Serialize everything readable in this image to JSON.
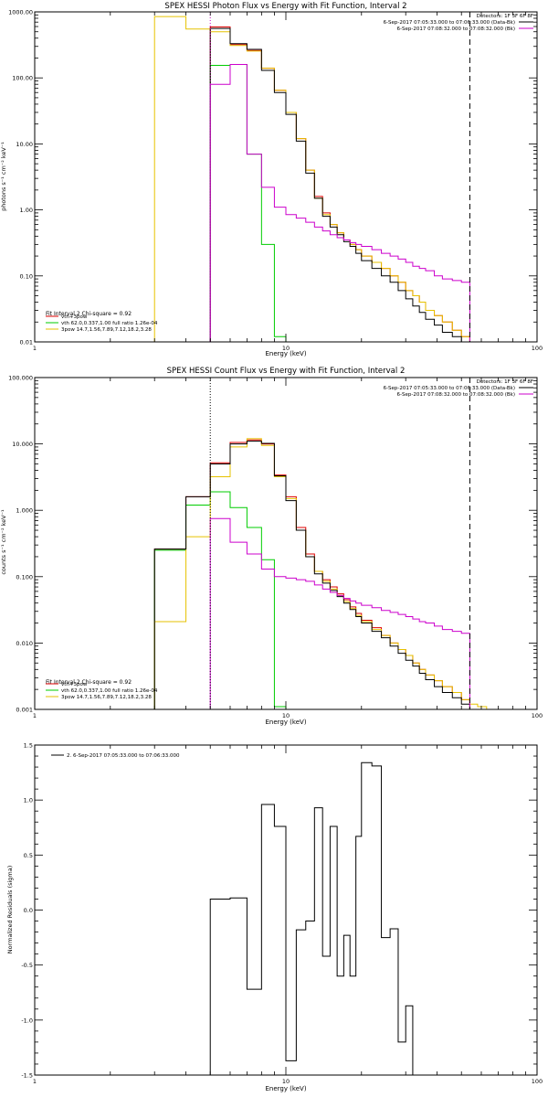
{
  "chart_data": [
    {
      "type": "line",
      "title": "SPEX HESSI Photon Flux vs Energy with Fit Function, Interval 2",
      "xlabel": "Energy (keV)",
      "ylabel": "photons s⁻¹ cm⁻² keV⁻¹",
      "xscale": "log",
      "yscale": "log",
      "xlim": [
        1,
        100
      ],
      "ylim": [
        0.01,
        1000
      ],
      "x_ticks": [
        "1",
        "10",
        "100"
      ],
      "y_ticks": [
        "0.01",
        "0.10",
        "1.00",
        "10.00",
        "100.00",
        "1000.00"
      ],
      "y_tick_values": [
        0.01,
        0.1,
        1,
        10,
        100,
        1000
      ],
      "bin_edges": [
        3,
        4,
        5,
        6,
        7,
        8,
        9,
        10,
        11,
        12,
        13,
        14,
        15,
        16,
        17,
        18,
        19,
        20,
        22,
        24,
        26,
        28,
        30,
        32,
        34,
        36,
        39,
        42,
        46,
        50,
        54,
        58,
        63,
        68
      ],
      "vlines": [
        {
          "x": 5.0,
          "style": "dotted",
          "color": "#cc00cc"
        },
        {
          "x": 54.0,
          "style": "dashed",
          "color": "#000000"
        }
      ],
      "info_lines": [
        "Detectors: 1F 3F 6F 8F",
        "6-Sep-2017 07:05:33.000 to 07:06:33.000 (Data-Bk)",
        "6-Sep-2017 07:08:32.000 to 07:08:32.000 (Bk)"
      ],
      "info_colors": [
        "#000000",
        "#cc00cc"
      ],
      "fit_label": "Fit Interval 2   Chi-square = 0.92",
      "series": [
        {
          "name": "vth+3pow",
          "color": "#dd0000",
          "start_index": 2,
          "values": [
            590,
            320,
            260,
            140,
            65,
            30,
            12,
            4.0,
            1.6,
            0.9,
            0.6,
            0.45,
            0.35,
            0.3,
            0.25,
            0.2,
            0.16,
            0.13,
            0.1,
            0.08,
            0.06,
            0.05,
            0.04,
            0.03,
            0.025,
            0.02,
            0.015,
            0.012
          ]
        },
        {
          "name": "vth 62.0,0.337,1.00  full ratio 1.26e-04",
          "color": "#00cc00",
          "start_index": 2,
          "values": [
            155,
            160,
            7.0,
            0.3,
            0.012
          ]
        },
        {
          "name": "3pow 14.7,1.56,7.89,7.12,18.2,3.28",
          "color": "#e6c200",
          "start_index": 0,
          "values": [
            850,
            550,
            500,
            310,
            255,
            140,
            65,
            30,
            12,
            4.0,
            1.5,
            0.85,
            0.6,
            0.45,
            0.35,
            0.3,
            0.25,
            0.2,
            0.16,
            0.13,
            0.1,
            0.08,
            0.06,
            0.05,
            0.04,
            0.03,
            0.025,
            0.02,
            0.015,
            0.012,
            0.01,
            0.009
          ]
        },
        {
          "name": "",
          "color": "#000000",
          "start_index": 2,
          "values": [
            560,
            330,
            270,
            130,
            60,
            28,
            11,
            3.6,
            1.5,
            0.8,
            0.55,
            0.42,
            0.33,
            0.28,
            0.22,
            0.17,
            0.13,
            0.1,
            0.08,
            0.06,
            0.045,
            0.035,
            0.028,
            0.022,
            0.018,
            0.014,
            0.012,
            0.01
          ]
        },
        {
          "name": "",
          "color": "#cc00cc",
          "start_index": 2,
          "values": [
            80,
            160,
            7.0,
            2.2,
            1.1,
            0.85,
            0.75,
            0.65,
            0.55,
            0.48,
            0.42,
            0.38,
            0.35,
            0.32,
            0.3,
            0.28,
            0.25,
            0.22,
            0.2,
            0.18,
            0.16,
            0.14,
            0.13,
            0.12,
            0.1,
            0.09,
            0.085,
            0.08
          ]
        }
      ]
    },
    {
      "type": "line",
      "title": "SPEX HESSI Count Flux vs Energy with Fit Function, Interval 2",
      "xlabel": "Energy (keV)",
      "ylabel": "counts s⁻¹ cm⁻² keV⁻¹",
      "xscale": "log",
      "yscale": "log",
      "xlim": [
        1,
        100
      ],
      "ylim": [
        0.001,
        100
      ],
      "x_ticks": [
        "1",
        "10",
        "100"
      ],
      "y_ticks": [
        "0.001",
        "0.010",
        "0.100",
        "1.000",
        "10.000",
        "100.000"
      ],
      "y_tick_values": [
        0.001,
        0.01,
        0.1,
        1,
        10,
        100
      ],
      "bin_edges": [
        3,
        4,
        5,
        6,
        7,
        8,
        9,
        10,
        11,
        12,
        13,
        14,
        15,
        16,
        17,
        18,
        19,
        20,
        22,
        24,
        26,
        28,
        30,
        32,
        34,
        36,
        39,
        42,
        46,
        50,
        54,
        58,
        63,
        68,
        73
      ],
      "vlines": [
        {
          "x": 5.0,
          "style": "dotted",
          "color": "#000000"
        },
        {
          "x": 54.0,
          "style": "dashed",
          "color": "#000000"
        }
      ],
      "info_lines": [
        "Detectors: 1F 3F 6F 8F",
        "6-Sep-2017 07:05:33.000 to 07:06:33.000 (Data-Bk)",
        "6-Sep-2017 07:08:32.000 to 07:08:32.000 (Bk)"
      ],
      "info_colors": [
        "#000000",
        "#cc00cc"
      ],
      "fit_label": "Fit Interval 2   Chi-square = 0.92",
      "series": [
        {
          "name": "vth+3pow",
          "color": "#dd0000",
          "start_index": 0,
          "values": [
            0.26,
            1.6,
            5.2,
            10.5,
            11.5,
            10.0,
            3.4,
            1.6,
            0.55,
            0.22,
            0.12,
            0.09,
            0.07,
            0.055,
            0.045,
            0.035,
            0.028,
            0.022,
            0.017,
            0.013,
            0.01,
            0.008,
            0.0065,
            0.005,
            0.004,
            0.0033,
            0.0027,
            0.0022,
            0.0018,
            0.0014
          ]
        },
        {
          "name": "vth 62.0,0.337,1.00  full ratio 1.26e-04",
          "color": "#00cc00",
          "start_index": 0,
          "values": [
            0.25,
            1.2,
            1.9,
            1.1,
            0.55,
            0.18,
            0.0011
          ]
        },
        {
          "name": "3pow 14.7,1.56,7.89,7.12,18.2,3.28",
          "color": "#e6c200",
          "start_index": 0,
          "values": [
            0.021,
            0.4,
            3.2,
            9.0,
            12.0,
            9.5,
            3.2,
            1.5,
            0.5,
            0.2,
            0.12,
            0.085,
            0.065,
            0.052,
            0.042,
            0.033,
            0.026,
            0.021,
            0.016,
            0.013,
            0.01,
            0.008,
            0.0065,
            0.005,
            0.004,
            0.0033,
            0.0027,
            0.0022,
            0.0018,
            0.0014,
            0.0012,
            0.0011,
            0.001,
            0.001
          ]
        },
        {
          "name": "",
          "color": "#000000",
          "start_index": 0,
          "values": [
            0.26,
            1.6,
            5.0,
            10.0,
            11.0,
            10.2,
            3.3,
            1.4,
            0.5,
            0.2,
            0.11,
            0.08,
            0.062,
            0.05,
            0.04,
            0.032,
            0.025,
            0.02,
            0.015,
            0.012,
            0.009,
            0.007,
            0.0055,
            0.0045,
            0.0035,
            0.0028,
            0.0022,
            0.0018,
            0.0015,
            0.0012
          ]
        },
        {
          "name": "",
          "color": "#cc00cc",
          "start_index": 2,
          "values": [
            0.75,
            0.33,
            0.22,
            0.13,
            0.1,
            0.095,
            0.09,
            0.085,
            0.075,
            0.065,
            0.058,
            0.052,
            0.047,
            0.043,
            0.04,
            0.037,
            0.034,
            0.031,
            0.029,
            0.027,
            0.025,
            0.023,
            0.021,
            0.02,
            0.018,
            0.016,
            0.015,
            0.014
          ]
        }
      ]
    },
    {
      "type": "line",
      "title": "",
      "xlabel": "Energy (keV)",
      "ylabel": "Normalized Residuals (sigma)",
      "xscale": "log",
      "yscale": "linear",
      "xlim": [
        1,
        100
      ],
      "ylim": [
        -1.5,
        1.5
      ],
      "x_ticks": [
        "1",
        "10",
        "100"
      ],
      "y_ticks": [
        "-1.5",
        "-1.0",
        "-0.5",
        "0.0",
        "0.5",
        "1.0",
        "1.5"
      ],
      "y_tick_values": [
        -1.5,
        -1.0,
        -0.5,
        0.0,
        0.5,
        1.0,
        1.5
      ],
      "bin_edges": [
        5,
        6,
        7,
        8,
        9,
        10,
        11,
        12,
        13,
        14,
        15,
        16,
        17,
        18,
        19,
        20,
        22,
        24,
        26,
        28,
        30,
        32,
        34,
        36,
        39,
        42,
        46,
        50,
        54
      ],
      "vlines": [],
      "info_lines": [],
      "info_colors": [],
      "fit_label": "",
      "series": [
        {
          "name": "2.  6-Sep-2017 07:05:33.000 to 07:06:33.000",
          "color": "#000000",
          "start_index": 0,
          "values": [
            0.1,
            0.11,
            -0.72,
            0.96,
            0.76,
            -1.37,
            -0.18,
            -0.1,
            0.93,
            -0.42,
            0.76,
            -0.6,
            -0.23,
            -0.6,
            0.67,
            1.34,
            1.31,
            -0.25,
            -0.17,
            -1.2,
            -0.87
          ]
        }
      ]
    }
  ]
}
